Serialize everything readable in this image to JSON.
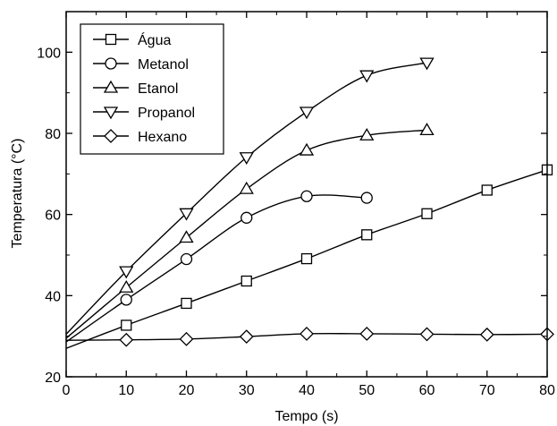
{
  "chart_data": {
    "type": "line",
    "xlabel": "Tempo (s)",
    "ylabel": "Temperatura (°C)",
    "xlim": [
      0,
      80
    ],
    "ylim": [
      20,
      110
    ],
    "xticks": [
      "0",
      "10",
      "20",
      "30",
      "40",
      "50",
      "60",
      "70",
      "80"
    ],
    "yticks": [
      "20",
      "40",
      "60",
      "80",
      "100"
    ],
    "legend_position": "top-left",
    "grid": false,
    "series": [
      {
        "name": "Água",
        "marker": "square",
        "x": [
          0,
          10,
          20,
          30,
          40,
          50,
          60,
          70,
          80
        ],
        "y": [
          27.0,
          32.7,
          38.1,
          43.6,
          49.1,
          55.0,
          60.2,
          66.0,
          71.0
        ]
      },
      {
        "name": "Metanol",
        "marker": "circle",
        "x": [
          0,
          10,
          20,
          30,
          40,
          50
        ],
        "y": [
          28.6,
          39.0,
          49.0,
          59.2,
          64.5,
          64.1
        ]
      },
      {
        "name": "Etanol",
        "marker": "triangle-up",
        "x": [
          0,
          10,
          20,
          30,
          40,
          50,
          60
        ],
        "y": [
          29.5,
          42.0,
          54.3,
          66.3,
          75.8,
          79.5,
          80.8
        ]
      },
      {
        "name": "Propanol",
        "marker": "triangle-down",
        "x": [
          0,
          10,
          20,
          30,
          40,
          50,
          60
        ],
        "y": [
          30.5,
          46.0,
          60.3,
          74.1,
          85.3,
          94.3,
          97.4
        ]
      },
      {
        "name": "Hexano",
        "marker": "diamond",
        "x": [
          0,
          10,
          20,
          30,
          40,
          50,
          60,
          70,
          80
        ],
        "y": [
          29.0,
          29.1,
          29.3,
          29.9,
          30.6,
          30.6,
          30.5,
          30.4,
          30.5
        ]
      }
    ]
  }
}
